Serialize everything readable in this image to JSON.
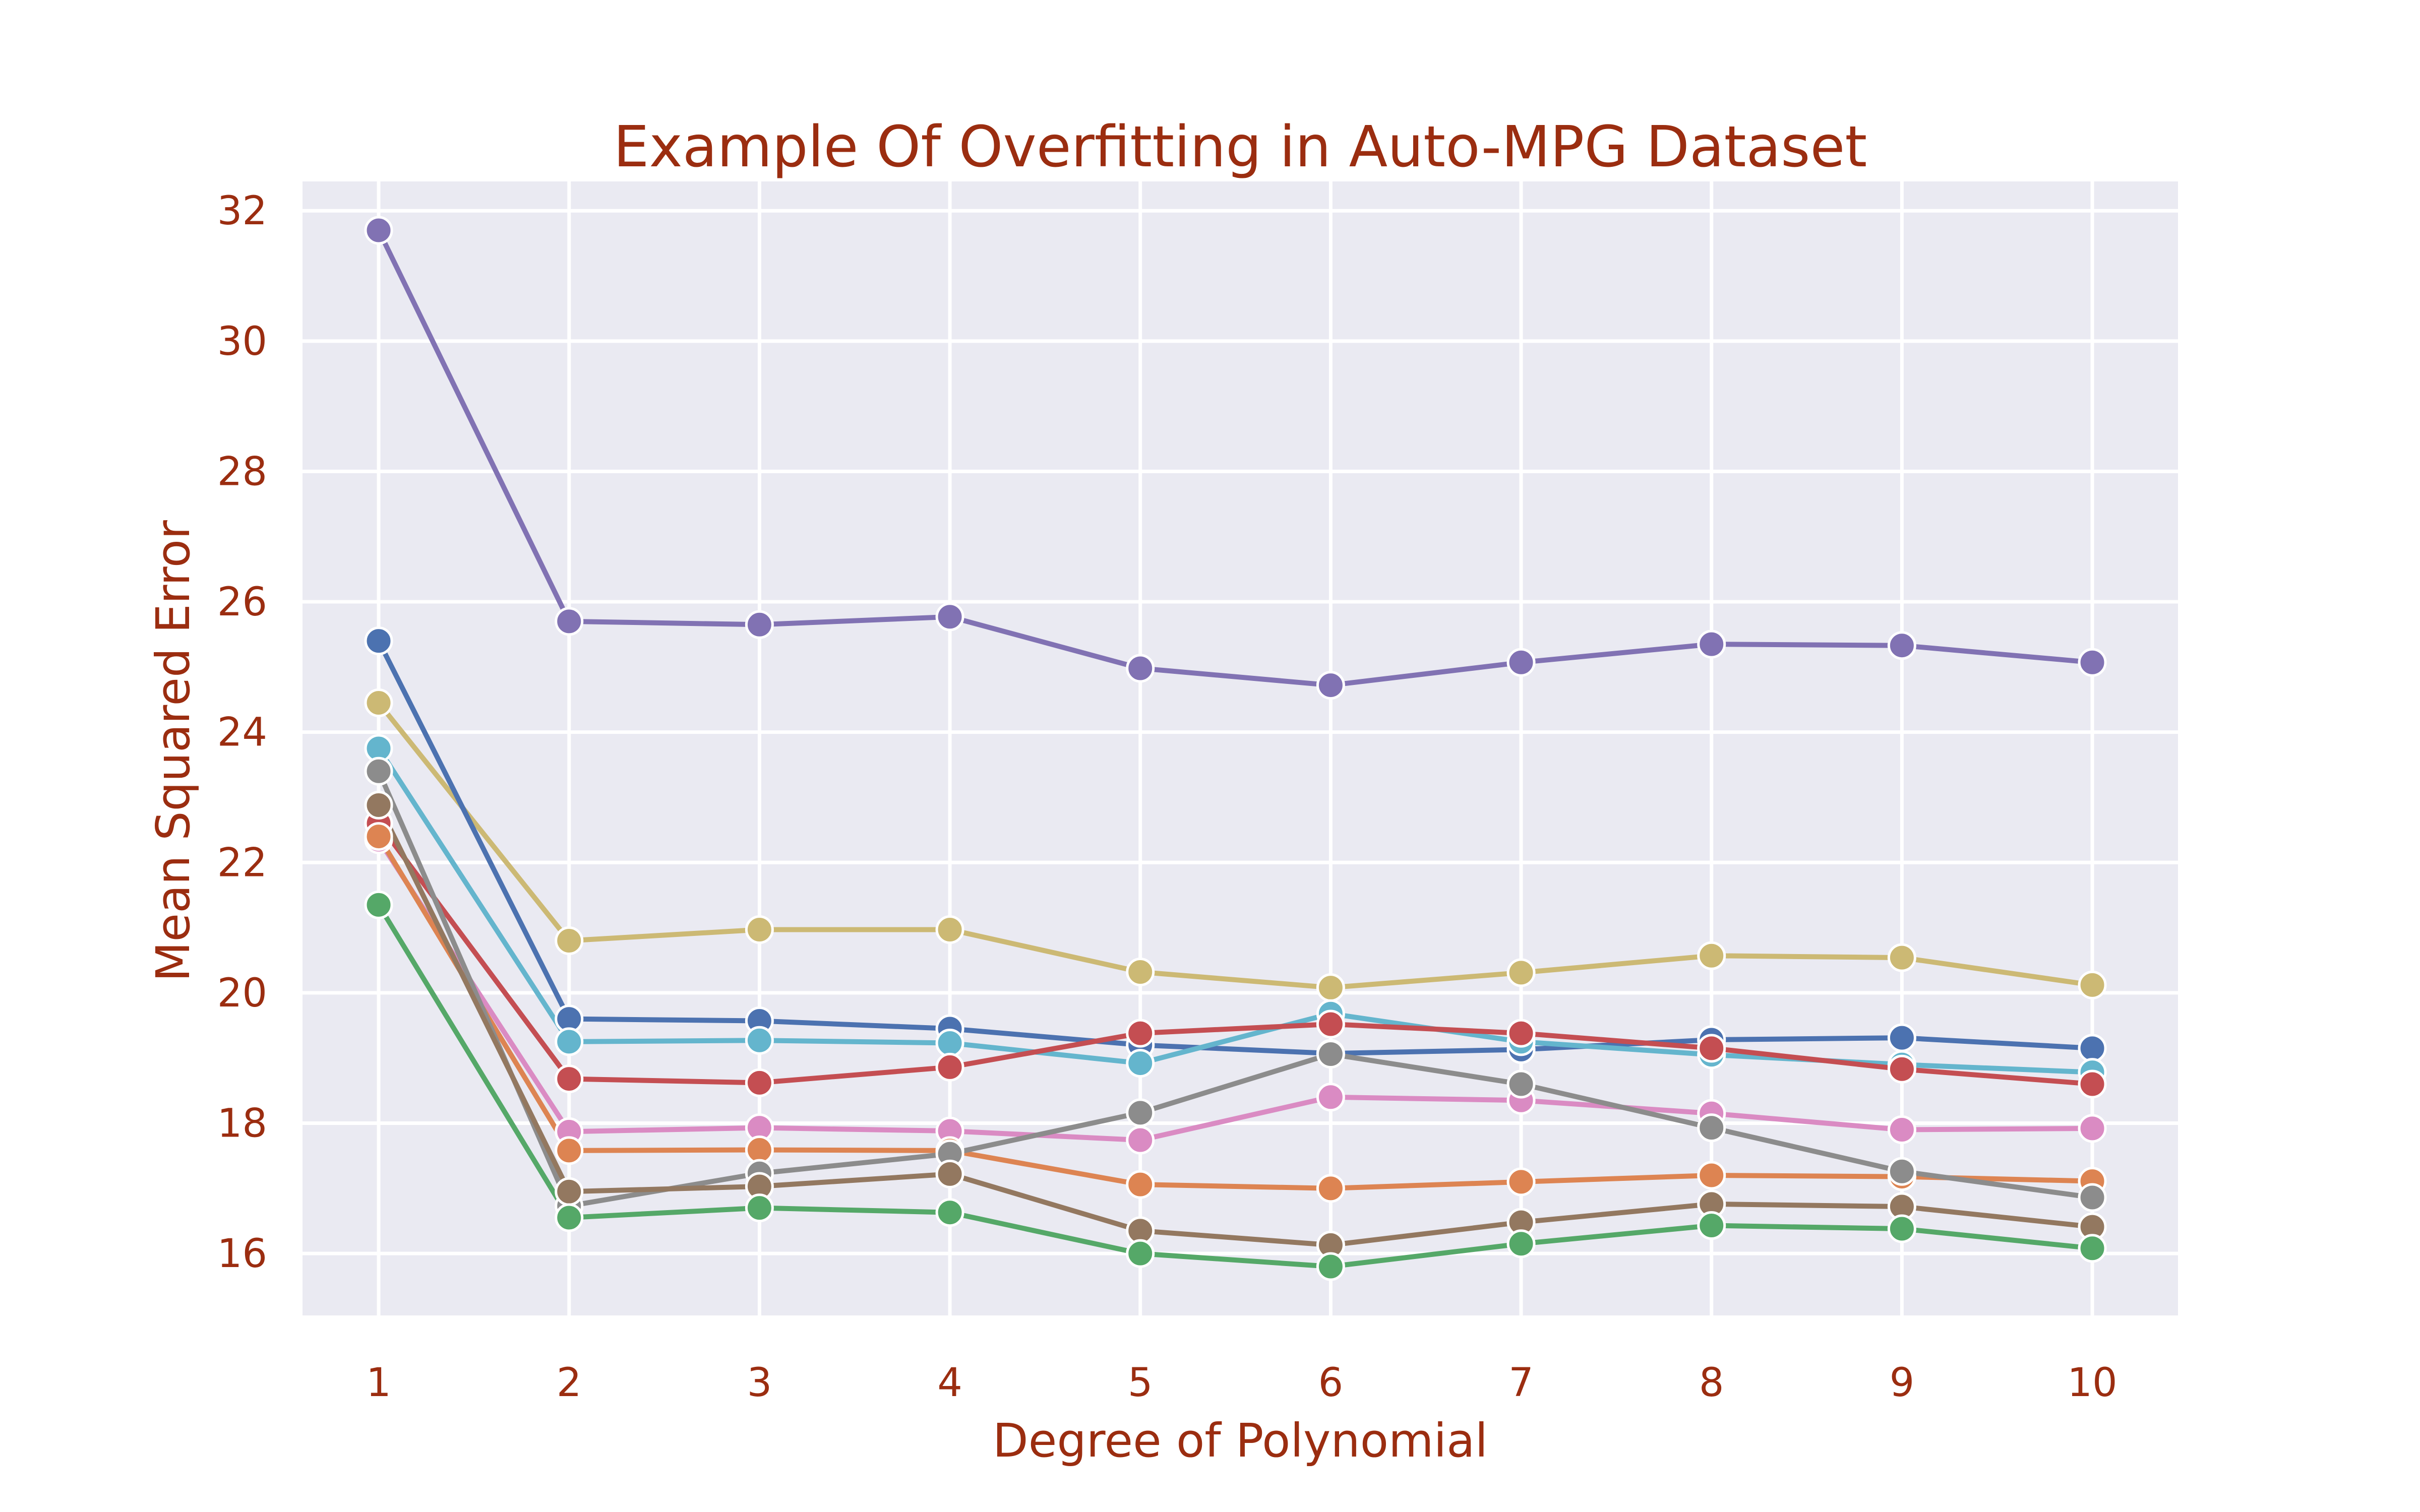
{
  "chart_data": {
    "type": "line",
    "title": "Example Of Overfitting in Auto-MPG Dataset",
    "xlabel": "Degree of Polynomial",
    "ylabel": "Mean Squared Error",
    "x": [
      1,
      2,
      3,
      4,
      5,
      6,
      7,
      8,
      9,
      10
    ],
    "x_ticks": [
      "1",
      "2",
      "3",
      "4",
      "5",
      "6",
      "7",
      "8",
      "9",
      "10"
    ],
    "y_ticks": [
      "16",
      "18",
      "20",
      "22",
      "24",
      "26",
      "28",
      "30",
      "32"
    ],
    "xlim": [
      0.6,
      10.45
    ],
    "ylim": [
      15.05,
      32.45
    ],
    "grid": true,
    "background": "#eaeaf2",
    "title_color": "#9b2d10",
    "series": [
      {
        "color": "#8172b3",
        "values": [
          31.7,
          25.7,
          25.65,
          25.77,
          24.98,
          24.72,
          25.07,
          25.35,
          25.33,
          25.07
        ]
      },
      {
        "color": "#ccb974",
        "values": [
          24.45,
          20.8,
          20.97,
          20.97,
          20.32,
          20.08,
          20.31,
          20.57,
          20.54,
          20.12
        ]
      },
      {
        "color": "#4c72b0",
        "values": [
          25.4,
          19.6,
          19.57,
          19.45,
          19.2,
          19.07,
          19.13,
          19.28,
          19.31,
          19.15
        ]
      },
      {
        "color": "#64b5cd",
        "values": [
          23.75,
          19.25,
          19.27,
          19.23,
          18.92,
          19.68,
          19.25,
          19.05,
          18.9,
          18.78
        ]
      },
      {
        "color": "#c44e52",
        "values": [
          22.6,
          18.68,
          18.62,
          18.86,
          19.38,
          19.52,
          19.38,
          19.15,
          18.83,
          18.6
        ]
      },
      {
        "color": "#da8bc3",
        "values": [
          22.35,
          17.87,
          17.93,
          17.88,
          17.74,
          18.4,
          18.35,
          18.15,
          17.9,
          17.92
        ]
      },
      {
        "color": "#dd8452",
        "values": [
          22.4,
          17.58,
          17.59,
          17.58,
          17.06,
          17.0,
          17.1,
          17.2,
          17.18,
          17.11
        ]
      },
      {
        "color": "#8c8c8c",
        "values": [
          23.4,
          16.73,
          17.23,
          17.53,
          18.16,
          19.06,
          18.6,
          17.93,
          17.26,
          16.86
        ]
      },
      {
        "color": "#937860",
        "values": [
          22.88,
          16.95,
          17.03,
          17.22,
          16.35,
          16.13,
          16.48,
          16.76,
          16.72,
          16.41
        ]
      },
      {
        "color": "#55a868",
        "values": [
          21.35,
          16.55,
          16.7,
          16.63,
          16.0,
          15.8,
          16.15,
          16.43,
          16.38,
          16.08
        ]
      }
    ]
  }
}
